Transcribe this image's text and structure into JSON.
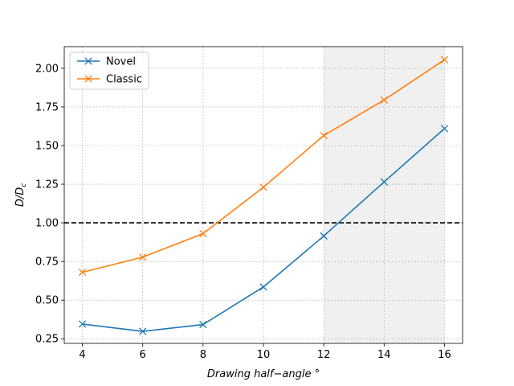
{
  "chart_data": {
    "type": "line",
    "title": "",
    "xlabel": "Drawing half−angle °",
    "ylabel": "D/D_c",
    "xlim": [
      3.4,
      16.6
    ],
    "ylim": [
      0.22,
      2.14
    ],
    "xticks": [
      4,
      6,
      8,
      10,
      12,
      14,
      16
    ],
    "yticks": [
      0.25,
      0.5,
      0.75,
      1.0,
      1.25,
      1.5,
      1.75,
      2.0
    ],
    "ytick_labels": [
      "0.25",
      "0.50",
      "0.75",
      "1.00",
      "1.25",
      "1.50",
      "1.75",
      "2.00"
    ],
    "grid": true,
    "legend_position": "top-left",
    "shaded_region": {
      "x_from": 12,
      "x_to": 16,
      "color": "#f0f0f0"
    },
    "reference_line": {
      "y": 1.0,
      "style": "dashed",
      "color": "#000000"
    },
    "x": [
      4,
      6,
      8,
      10,
      12,
      14,
      16
    ],
    "series": [
      {
        "name": "Novel",
        "color": "#1f77b4",
        "marker": "x",
        "values": [
          0.345,
          0.298,
          0.342,
          0.585,
          0.915,
          1.265,
          1.61
        ]
      },
      {
        "name": "Classic",
        "color": "#ff7f0e",
        "marker": "x",
        "values": [
          0.68,
          0.778,
          0.93,
          1.23,
          1.565,
          1.795,
          2.055
        ]
      }
    ]
  }
}
